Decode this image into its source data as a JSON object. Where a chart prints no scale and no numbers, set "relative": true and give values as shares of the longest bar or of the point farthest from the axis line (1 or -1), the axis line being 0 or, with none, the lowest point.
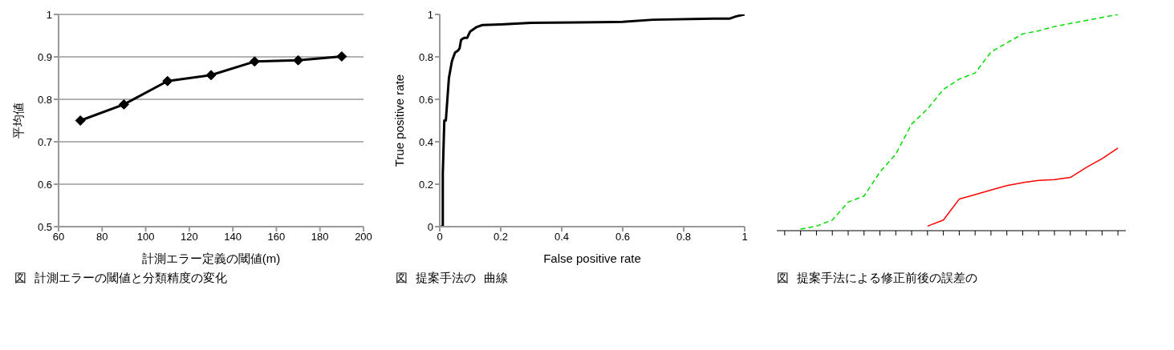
{
  "chart_data": [
    {
      "type": "line",
      "ylabel": "平均値",
      "xlabel": "計測エラー定義の閾値(m)",
      "x": [
        70,
        90,
        110,
        130,
        150,
        170,
        190
      ],
      "values": [
        0.75,
        0.788,
        0.843,
        0.857,
        0.889,
        0.892,
        0.901
      ],
      "color": "#000000",
      "xlim": [
        60,
        200
      ],
      "xticks": [
        60,
        80,
        100,
        120,
        140,
        160,
        180,
        200
      ],
      "ylim": [
        0.5,
        1
      ],
      "yticks": [
        0.5,
        0.6,
        0.7,
        0.8,
        0.9,
        1
      ],
      "grid": "y",
      "marker": "diamond",
      "annotations": [
        "図",
        "計測エラーの閾値と分類精度の変化"
      ]
    },
    {
      "type": "line",
      "xlabel": "False positive rate",
      "ylabel": "True positive rate",
      "x": [
        0,
        0.01,
        0.01,
        0.015,
        0.02,
        0.025,
        0.03,
        0.04,
        0.05,
        0.06,
        0.065,
        0.07,
        0.08,
        0.09,
        0.1,
        0.12,
        0.14,
        0.2,
        0.3,
        0.45,
        0.6,
        0.7,
        0.9,
        0.95,
        0.97,
        1
      ],
      "values": [
        0,
        0,
        0.25,
        0.5,
        0.5,
        0.6,
        0.7,
        0.78,
        0.82,
        0.83,
        0.84,
        0.88,
        0.89,
        0.89,
        0.92,
        0.94,
        0.95,
        0.953,
        0.96,
        0.962,
        0.965,
        0.975,
        0.98,
        0.98,
        0.99,
        1
      ],
      "color": "#000000",
      "xlim": [
        0,
        1
      ],
      "xticks": [
        0,
        0.2,
        0.4,
        0.6,
        0.8,
        1
      ],
      "ylim": [
        0,
        1
      ],
      "yticks": [
        0,
        0.2,
        0.4,
        0.6,
        0.8,
        1
      ],
      "annotations": [
        "図",
        "提案手法の",
        "曲線"
      ]
    },
    {
      "type": "line",
      "relative": true,
      "categories": [
        null,
        null,
        null,
        null,
        null,
        null,
        null,
        null,
        null,
        null,
        null,
        null,
        null,
        null,
        null,
        null,
        null,
        null,
        null,
        null,
        null,
        null
      ],
      "series": [
        {
          "color": "#ff0000",
          "line_style": "solid",
          "values": [
            null,
            null,
            null,
            null,
            null,
            null,
            null,
            null,
            null,
            0.021,
            0.049,
            0.146,
            0.167,
            0.188,
            0.208,
            0.222,
            0.232,
            0.236,
            0.246,
            0.292,
            0.333,
            0.382
          ]
        },
        {
          "color": "#00dd00",
          "line_style": "dashed",
          "values": [
            null,
            0.007,
            0.021,
            0.049,
            0.132,
            0.16,
            0.271,
            0.354,
            0.493,
            0.563,
            0.653,
            0.701,
            0.729,
            0.826,
            0.868,
            0.91,
            0.924,
            0.944,
            0.958,
            0.972,
            0.986,
            1
          ]
        }
      ],
      "annotations": [
        "図",
        "提案手法による修正前後の誤差の"
      ]
    }
  ]
}
